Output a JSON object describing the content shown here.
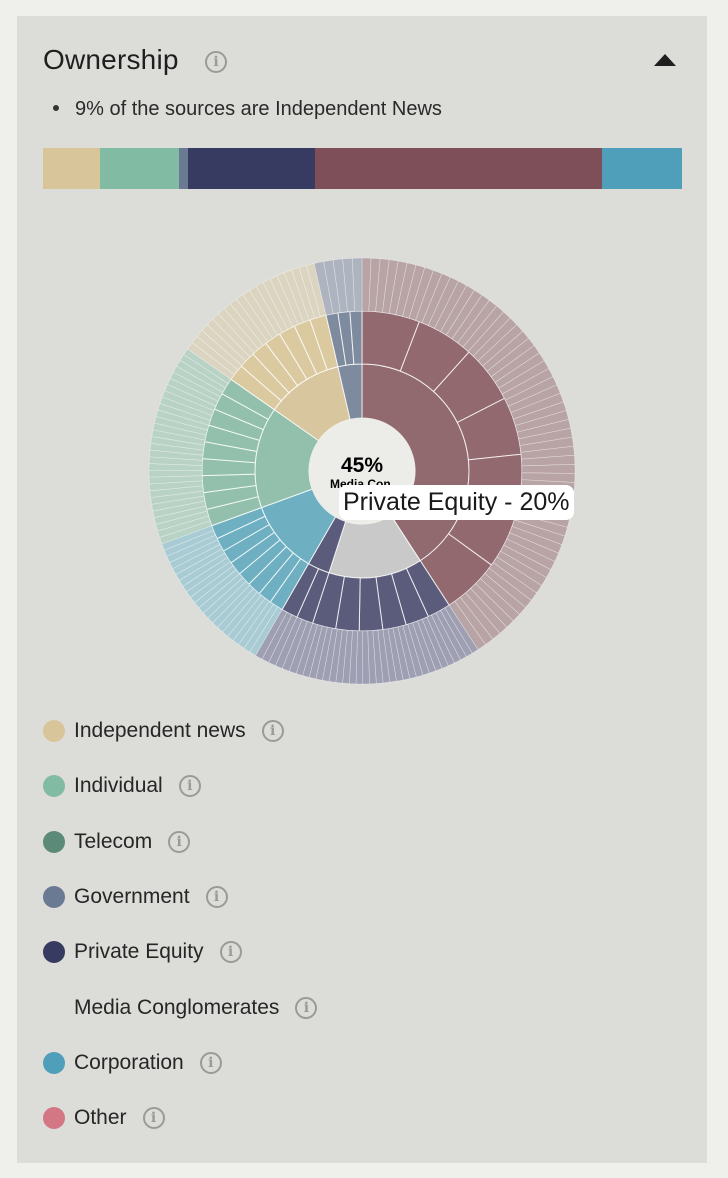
{
  "section": {
    "title": "Ownership",
    "bullet": "9% of the sources are Independent News"
  },
  "colors": {
    "independent_news": "#d8c59a",
    "individual": "#82bba4",
    "telecom": "#5b8b78",
    "government": "#6b7a93",
    "private_equity": "#373a61",
    "media_conglomerates": "#7e4f58",
    "corporation": "#4f9fba",
    "other": "#d47785"
  },
  "ownership_bar": [
    {
      "category": "Independent news",
      "share": 9,
      "color": "#d8c59a"
    },
    {
      "category": "Individual",
      "share": 12.4,
      "color": "#82bba4"
    },
    {
      "category": "Government",
      "share": 1.3,
      "color": "#6b7a93"
    },
    {
      "category": "Private Equity",
      "share": 20,
      "color": "#373a61"
    },
    {
      "category": "Media Conglomerates",
      "share": 45,
      "color": "#7e4f58"
    },
    {
      "category": "Corporation",
      "share": 12.5,
      "color": "#4f9fba"
    }
  ],
  "sunburst": {
    "center_value": "45%",
    "center_label": "Media Con.",
    "tooltip": "Private Equity - 20%",
    "segments": [
      {
        "category": "Media Conglomerates",
        "start_angle": 0,
        "end_angle": 147,
        "inner_color": "#916a70",
        "mid_color": "#936970",
        "outer_color": "#b8a3a5",
        "mid_slices": 7,
        "outer_slices": 60
      },
      {
        "category": "Private Equity",
        "start_angle": 147,
        "end_angle": 198,
        "inner_color": "#c9c9c9",
        "mid_color": "#5b5c7c",
        "outer_color": "#9e9fb2",
        "mid_slices": 6,
        "outer_slices": 28
      },
      {
        "category": "Private Equity outer",
        "start_angle": 198,
        "end_angle": 210,
        "inner_color": "#5b5c7c",
        "mid_color": "#5b5c7c",
        "outer_color": "#9e9fb2",
        "mid_slices": 2,
        "outer_slices": 6
      },
      {
        "category": "Corporation",
        "start_angle": 210,
        "end_angle": 250,
        "inner_color": "#6eafc2",
        "mid_color": "#6eafc2",
        "outer_color": "#a8cbd4",
        "mid_slices": 8,
        "outer_slices": 22
      },
      {
        "category": "Individual",
        "start_angle": 250,
        "end_angle": 305,
        "inner_color": "#93c0ad",
        "mid_color": "#93c0ad",
        "outer_color": "#b8d2c6",
        "mid_slices": 9,
        "outer_slices": 30
      },
      {
        "category": "Independent news",
        "start_angle": 305,
        "end_angle": 347,
        "inner_color": "#d8c79e",
        "mid_color": "#dbc99f",
        "outer_color": "#dbd4c0",
        "mid_slices": 7,
        "outer_slices": 20
      },
      {
        "category": "Government",
        "start_angle": 347,
        "end_angle": 360,
        "inner_color": "#7e8a9e",
        "mid_color": "#7e8a9e",
        "outer_color": "#aeb4bf",
        "mid_slices": 3,
        "outer_slices": 5
      }
    ]
  },
  "legend": [
    {
      "label": "Independent news",
      "color": "#d8c59a"
    },
    {
      "label": "Individual",
      "color": "#82bba4"
    },
    {
      "label": "Telecom",
      "color": "#5b8b78"
    },
    {
      "label": "Government",
      "color": "#6b7a93"
    },
    {
      "label": "Private Equity",
      "color": "#373a61"
    },
    {
      "label": "Media Conglomerates",
      "color": ""
    },
    {
      "label": "Corporation",
      "color": "#4f9fba"
    },
    {
      "label": "Other",
      "color": "#d47785"
    }
  ]
}
